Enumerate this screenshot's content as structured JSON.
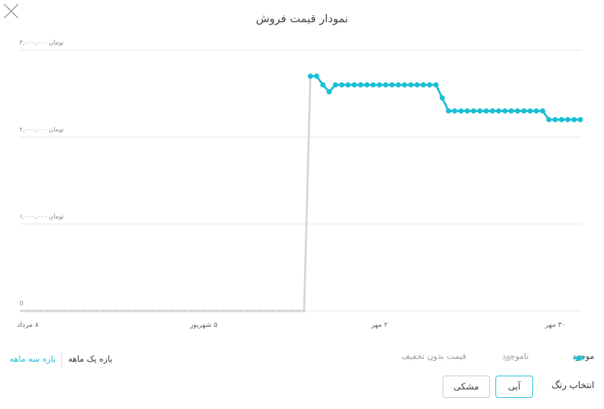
{
  "title": "نمودار قیمت فروش",
  "chart_data": {
    "type": "line",
    "categories": [
      null,
      "۸ مرداد",
      null,
      null,
      null,
      null,
      null,
      null,
      null,
      null,
      null,
      null,
      null,
      null,
      null,
      null,
      null,
      null,
      null,
      null,
      null,
      null,
      null,
      null,
      null,
      null,
      null,
      null,
      null,
      "۵ شهریور",
      null,
      null,
      null,
      null,
      null,
      null,
      null,
      null,
      null,
      null,
      null,
      null,
      null,
      null,
      null,
      null,
      null,
      null,
      null,
      null,
      null,
      null,
      null,
      null,
      null,
      null,
      null,
      "۲ مهر",
      null,
      null,
      null,
      null,
      null,
      null,
      null,
      null,
      null,
      null,
      null,
      null,
      null,
      null,
      null,
      null,
      null,
      null,
      null,
      null,
      null,
      null,
      null,
      null,
      null,
      null,
      null,
      "۳۰ مهر",
      null,
      null,
      null,
      null
    ],
    "series": [
      {
        "name": "ناموجود",
        "color": "#d6d6d6",
        "values": [
          0,
          0,
          0,
          0,
          0,
          0,
          0,
          0,
          0,
          0,
          0,
          0,
          0,
          0,
          0,
          0,
          0,
          0,
          0,
          0,
          0,
          0,
          0,
          0,
          0,
          0,
          0,
          0,
          0,
          0,
          0,
          0,
          0,
          0,
          0,
          0,
          0,
          0,
          0,
          0,
          0,
          0,
          0,
          0,
          0,
          0,
          2700000,
          null,
          null,
          null,
          null,
          null,
          null,
          null,
          null,
          null,
          null,
          null,
          null,
          null,
          null,
          null,
          null,
          null,
          null,
          null,
          null,
          null,
          null,
          null,
          null,
          null,
          null,
          null,
          null,
          null,
          null,
          null,
          null,
          null,
          null,
          null,
          null,
          null,
          null,
          null,
          null,
          null,
          null,
          null
        ]
      },
      {
        "name": "موجود",
        "color": "#19bfd3",
        "values": [
          null,
          null,
          null,
          null,
          null,
          null,
          null,
          null,
          null,
          null,
          null,
          null,
          null,
          null,
          null,
          null,
          null,
          null,
          null,
          null,
          null,
          null,
          null,
          null,
          null,
          null,
          null,
          null,
          null,
          null,
          null,
          null,
          null,
          null,
          null,
          null,
          null,
          null,
          null,
          null,
          null,
          null,
          null,
          null,
          null,
          null,
          2700000,
          2700000,
          2600000,
          2520000,
          2600000,
          2600000,
          2600000,
          2600000,
          2600000,
          2600000,
          2600000,
          2600000,
          2600000,
          2600000,
          2600000,
          2600000,
          2600000,
          2600000,
          2600000,
          2600000,
          2600000,
          2450000,
          2300000,
          2300000,
          2300000,
          2300000,
          2300000,
          2300000,
          2300000,
          2300000,
          2300000,
          2300000,
          2300000,
          2300000,
          2300000,
          2300000,
          2300000,
          2300000,
          2200000,
          2200000,
          2200000,
          2200000,
          2200000,
          2200000
        ]
      }
    ],
    "extra_legend": [
      {
        "name": "قیمت بدون تخفیف",
        "color": "#d6d6d6"
      }
    ],
    "ylim": [
      0,
      3000000
    ],
    "yticks": [
      0,
      {
        "value": 1000000,
        "label": "۱,۰۰۰,۰۰۰ تومان"
      },
      {
        "value": 2000000,
        "label": "۲,۰۰۰,۰۰۰ تومان"
      },
      {
        "value": 3000000,
        "label": "۳,۰۰۰,۰۰۰ تومان"
      }
    ],
    "grid": true
  },
  "range": {
    "one_month": "بازه یک ماهه",
    "three_month": "بازه سه ماهه"
  },
  "color_picker": {
    "label": "انتخاب رنگ",
    "options": [
      "آبی",
      "مشکی"
    ]
  }
}
